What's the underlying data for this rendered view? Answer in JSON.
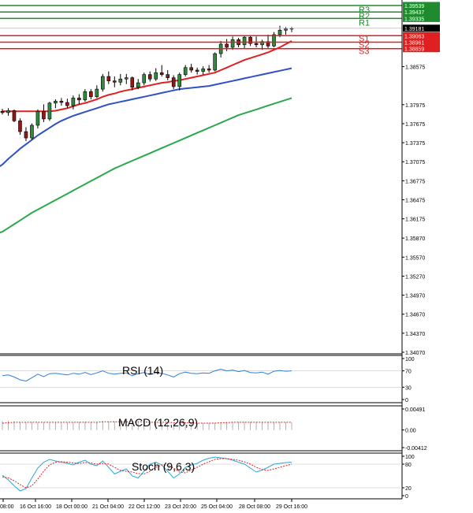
{
  "colors": {
    "bull_body": "#2e8b3e",
    "bear_body": "#8b1a1a",
    "resistance": "#1f8a2e",
    "support": "#e02020",
    "ma_fast": "#e02020",
    "ma_mid": "#3050c8",
    "ma_slow": "#2aa84a",
    "current_tag": "#000000",
    "rsi_line": "#2f7fd6",
    "macd_hist": "#b0b0b0",
    "macd_signal": "#e02020",
    "stoch_k": "#2aa8d6",
    "stoch_d": "#e02020",
    "grid": "#c8c8c8",
    "axis": "#000000"
  },
  "chart_data": [
    {
      "type": "candlestick",
      "panel": "price",
      "y_ticks": [
        "1.38575",
        "1.37975",
        "1.37675",
        "1.37375",
        "1.37075",
        "1.36775",
        "1.36475",
        "1.36175",
        "1.35870",
        "1.35570",
        "1.35270",
        "1.34970",
        "1.34670",
        "1.34370",
        "1.34070"
      ],
      "ylim": [
        1.3407,
        1.396
      ],
      "levels": [
        {
          "name": "R3",
          "value": 1.39539,
          "label": "1.39539",
          "kind": "resistance"
        },
        {
          "name": "R2",
          "value": 1.39437,
          "label": "1.39437",
          "kind": "resistance"
        },
        {
          "name": "R1",
          "value": 1.39335,
          "label": "1.39335",
          "kind": "resistance"
        },
        {
          "name": "S1",
          "value": 1.39063,
          "label": "1.39063",
          "kind": "support"
        },
        {
          "name": "S2",
          "value": 1.38961,
          "label": "1.38961",
          "kind": "support"
        },
        {
          "name": "S3",
          "value": 1.38859,
          "label": "1.38859",
          "kind": "support"
        }
      ],
      "current_price": {
        "value": 1.39181,
        "label": "1.39181"
      },
      "candles": [
        [
          1.3787,
          1.3791,
          1.3782,
          1.3785
        ],
        [
          1.3785,
          1.3792,
          1.378,
          1.3788
        ],
        [
          1.3788,
          1.379,
          1.377,
          1.3772
        ],
        [
          1.3772,
          1.3776,
          1.375,
          1.3755
        ],
        [
          1.3755,
          1.3762,
          1.374,
          1.3745
        ],
        [
          1.3745,
          1.3768,
          1.3742,
          1.3765
        ],
        [
          1.3765,
          1.379,
          1.376,
          1.3787
        ],
        [
          1.3787,
          1.3798,
          1.377,
          1.3775
        ],
        [
          1.3775,
          1.3802,
          1.3772,
          1.38
        ],
        [
          1.38,
          1.3806,
          1.3792,
          1.3803
        ],
        [
          1.3803,
          1.3808,
          1.3796,
          1.3801
        ],
        [
          1.3801,
          1.3807,
          1.3792,
          1.3796
        ],
        [
          1.3796,
          1.3812,
          1.379,
          1.3808
        ],
        [
          1.3808,
          1.3814,
          1.3798,
          1.3805
        ],
        [
          1.3805,
          1.3822,
          1.3802,
          1.3818
        ],
        [
          1.3818,
          1.3822,
          1.3806,
          1.381
        ],
        [
          1.381,
          1.3828,
          1.3808,
          1.3822
        ],
        [
          1.3822,
          1.3846,
          1.3818,
          1.3842
        ],
        [
          1.3842,
          1.385,
          1.383,
          1.3835
        ],
        [
          1.3835,
          1.3842,
          1.3825,
          1.3833
        ],
        [
          1.3833,
          1.3846,
          1.3828,
          1.3838
        ],
        [
          1.3838,
          1.3846,
          1.383,
          1.384
        ],
        [
          1.384,
          1.3842,
          1.382,
          1.3825
        ],
        [
          1.3825,
          1.3838,
          1.3822,
          1.3832
        ],
        [
          1.3832,
          1.3848,
          1.3828,
          1.3845
        ],
        [
          1.3845,
          1.385,
          1.3834,
          1.3838
        ],
        [
          1.3838,
          1.3855,
          1.3835,
          1.3848
        ],
        [
          1.3848,
          1.386,
          1.3842,
          1.3845
        ],
        [
          1.3845,
          1.3852,
          1.3836,
          1.384
        ],
        [
          1.384,
          1.3844,
          1.3822,
          1.3826
        ],
        [
          1.3826,
          1.3848,
          1.382,
          1.3845
        ],
        [
          1.3845,
          1.386,
          1.3842,
          1.3856
        ],
        [
          1.3856,
          1.3862,
          1.3848,
          1.3852
        ],
        [
          1.3852,
          1.3856,
          1.3845,
          1.385
        ],
        [
          1.385,
          1.3858,
          1.3845,
          1.3854
        ],
        [
          1.3854,
          1.386,
          1.3848,
          1.3852
        ],
        [
          1.3852,
          1.388,
          1.385,
          1.3878
        ],
        [
          1.3878,
          1.3898,
          1.3872,
          1.3893
        ],
        [
          1.3893,
          1.3901,
          1.3882,
          1.3888
        ],
        [
          1.3888,
          1.3905,
          1.3884,
          1.39
        ],
        [
          1.39,
          1.3903,
          1.3888,
          1.3892
        ],
        [
          1.3892,
          1.3906,
          1.3886,
          1.3904
        ],
        [
          1.3904,
          1.3907,
          1.389,
          1.3894
        ],
        [
          1.3894,
          1.3905,
          1.3888,
          1.3892
        ],
        [
          1.3892,
          1.39,
          1.3884,
          1.3897
        ],
        [
          1.3897,
          1.3908,
          1.3886,
          1.389
        ],
        [
          1.389,
          1.3912,
          1.3888,
          1.3908
        ],
        [
          1.3908,
          1.3922,
          1.3904,
          1.3915
        ],
        [
          1.3915,
          1.392,
          1.3908,
          1.3917
        ],
        [
          1.3917,
          1.392,
          1.3912,
          1.3918
        ]
      ],
      "series": [
        {
          "values": [
            1.3787,
            1.3787,
            1.3787,
            1.3787,
            1.3787,
            1.3787,
            1.3787,
            1.3787,
            1.3787,
            1.3788,
            1.379,
            1.3792,
            1.3795,
            1.3798,
            1.38,
            1.3803,
            1.3806,
            1.381,
            1.3813,
            1.3815,
            1.3818,
            1.382,
            1.3822,
            1.3824,
            1.3826,
            1.3828,
            1.383,
            1.3832,
            1.3833,
            1.3835,
            1.3836,
            1.3838,
            1.384,
            1.3842,
            1.3844,
            1.3846,
            1.3848,
            1.3852,
            1.3856,
            1.386,
            1.3864,
            1.3868,
            1.3871,
            1.3874,
            1.3877,
            1.388,
            1.3884,
            1.3888,
            1.3893,
            1.3898
          ]
        },
        {
          "values": [
            1.3703,
            1.3712,
            1.372,
            1.3728,
            1.3735,
            1.3742,
            1.3749,
            1.3755,
            1.3761,
            1.3767,
            1.3772,
            1.3776,
            1.378,
            1.3783,
            1.3786,
            1.3789,
            1.3792,
            1.3795,
            1.3798,
            1.38,
            1.3802,
            1.3804,
            1.3806,
            1.3808,
            1.381,
            1.3812,
            1.3814,
            1.3816,
            1.3818,
            1.382,
            1.3822,
            1.3823,
            1.3824,
            1.3825,
            1.3826,
            1.3827,
            1.3829,
            1.3831,
            1.3833,
            1.3835,
            1.3837,
            1.3839,
            1.3841,
            1.3843,
            1.3845,
            1.3847,
            1.3849,
            1.3851,
            1.3853,
            1.3855
          ]
        },
        {
          "values": [
            1.3597,
            1.3603,
            1.3609,
            1.3615,
            1.3621,
            1.3627,
            1.3632,
            1.3637,
            1.3642,
            1.3647,
            1.3652,
            1.3657,
            1.3662,
            1.3667,
            1.3672,
            1.3677,
            1.3682,
            1.3687,
            1.3692,
            1.3697,
            1.3701,
            1.3705,
            1.3709,
            1.3713,
            1.3717,
            1.3721,
            1.3725,
            1.3729,
            1.3733,
            1.3737,
            1.3741,
            1.3745,
            1.3749,
            1.3753,
            1.3757,
            1.3761,
            1.3765,
            1.3769,
            1.3773,
            1.3777,
            1.3781,
            1.3784,
            1.3787,
            1.379,
            1.3793,
            1.3796,
            1.3799,
            1.3802,
            1.3805,
            1.3808
          ]
        }
      ]
    },
    {
      "type": "line",
      "panel": "rsi",
      "title": "RSI (14)",
      "y_ticks": [
        "100",
        "70",
        "30",
        "0"
      ],
      "ylim": [
        0,
        100
      ],
      "series": [
        {
          "values": [
            58,
            60,
            55,
            48,
            45,
            53,
            62,
            56,
            63,
            64,
            62,
            60,
            64,
            62,
            66,
            61,
            65,
            70,
            64,
            62,
            64,
            65,
            58,
            63,
            66,
            61,
            65,
            64,
            60,
            55,
            63,
            67,
            64,
            63,
            65,
            64,
            70,
            74,
            70,
            72,
            68,
            71,
            66,
            65,
            67,
            62,
            69,
            71,
            69,
            70
          ]
        }
      ]
    },
    {
      "type": "bar",
      "panel": "macd",
      "title": "MACD (12,26,9)",
      "y_ticks": [
        "0.00491",
        "0.00",
        "-0.00412"
      ],
      "ylim": [
        -0.00412,
        0.00491
      ],
      "series": [
        {
          "values": [
            0.0021,
            0.0021,
            0.002,
            0.0019,
            0.0018,
            0.0018,
            0.0018,
            0.0018,
            0.0018,
            0.0018,
            0.0018,
            0.0018,
            0.0018,
            0.0019,
            0.0019,
            0.0019,
            0.0019,
            0.002,
            0.002,
            0.002,
            0.002,
            0.0019,
            0.0019,
            0.0019,
            0.0018,
            0.0018,
            0.0018,
            0.0017,
            0.0017,
            0.0016,
            0.0016,
            0.0016,
            0.0016,
            0.0016,
            0.0016,
            0.0016,
            0.0017,
            0.0018,
            0.0019,
            0.0019,
            0.0019,
            0.0019,
            0.0019,
            0.0019,
            0.0018,
            0.0018,
            0.0018,
            0.0018,
            0.0018,
            0.0018
          ]
        },
        {
          "values": [
            0.0016,
            0.0017,
            0.0018,
            0.0018,
            0.0018,
            0.0018,
            0.0018,
            0.0018,
            0.0018,
            0.0018,
            0.0018,
            0.0018,
            0.0018,
            0.0018,
            0.0018,
            0.0018,
            0.0018,
            0.0019,
            0.0019,
            0.0019,
            0.0019,
            0.0019,
            0.0019,
            0.0019,
            0.0019,
            0.0018,
            0.0018,
            0.0018,
            0.0018,
            0.0017,
            0.0017,
            0.0017,
            0.0017,
            0.0016,
            0.0016,
            0.0016,
            0.0016,
            0.0017,
            0.0017,
            0.0018,
            0.0018,
            0.0018,
            0.0018,
            0.0018,
            0.0018,
            0.0018,
            0.0018,
            0.0018,
            0.0018,
            0.0018
          ]
        }
      ]
    },
    {
      "type": "line",
      "panel": "stoch",
      "title": "Stoch (9,6,3)",
      "y_ticks": [
        "100",
        "80",
        "20",
        "0"
      ],
      "ylim": [
        0,
        100
      ],
      "series": [
        {
          "values": [
            52,
            40,
            25,
            12,
            18,
            45,
            70,
            85,
            92,
            88,
            85,
            82,
            78,
            85,
            90,
            80,
            76,
            88,
            72,
            55,
            62,
            68,
            50,
            45,
            62,
            80,
            85,
            78,
            62,
            45,
            55,
            72,
            78,
            82,
            90,
            95,
            98,
            96,
            94,
            90,
            85,
            80,
            70,
            60,
            65,
            72,
            80,
            82,
            84,
            85
          ]
        },
        {
          "values": [
            48,
            45,
            38,
            28,
            20,
            25,
            42,
            62,
            78,
            85,
            86,
            85,
            83,
            82,
            84,
            83,
            80,
            82,
            80,
            72,
            64,
            62,
            60,
            56,
            55,
            62,
            72,
            78,
            78,
            70,
            60,
            58,
            65,
            72,
            80,
            86,
            92,
            94,
            94,
            92,
            90,
            86,
            80,
            72,
            66,
            64,
            68,
            72,
            76,
            80
          ]
        }
      ]
    }
  ],
  "x_axis": {
    "tick_labels": [
      "08:00",
      "16 Oct 16:00",
      "18 Oct 00:00",
      "21 Oct 04:00",
      "22 Oct 12:00",
      "23 Oct 20:00",
      "25 Oct 04:00",
      "28 Oct 08:00",
      "29 Oct 16:00"
    ]
  }
}
